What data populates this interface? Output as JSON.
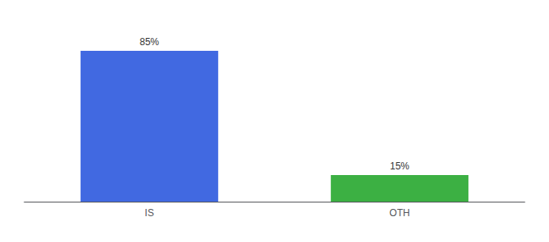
{
  "chart_data": {
    "type": "bar",
    "categories": [
      "IS",
      "OTH"
    ],
    "values": [
      85,
      15
    ],
    "value_labels": [
      "85%",
      "15%"
    ],
    "colors": [
      "#4169e1",
      "#3cb043"
    ],
    "ylim": [
      0,
      100
    ],
    "data_labels": true,
    "tick_labels": "x",
    "grid": false
  }
}
